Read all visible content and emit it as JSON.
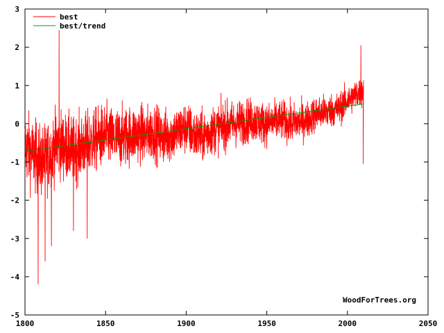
{
  "chart_data": {
    "type": "line",
    "xlim": [
      1800,
      2050
    ],
    "ylim": [
      -5,
      3
    ],
    "x_ticks": [
      1800,
      1850,
      1900,
      1950,
      2000,
      2050
    ],
    "y_ticks": [
      -5,
      -4,
      -3,
      -2,
      -1,
      0,
      1,
      2,
      3
    ],
    "x_tick_labels": [
      "1800",
      "1850",
      "1900",
      "1950",
      "2000",
      "2050"
    ],
    "y_tick_labels": [
      "-5",
      "-4",
      "-3",
      "-2",
      "-1",
      "0",
      "1",
      "2",
      "3"
    ],
    "grid": false,
    "legend_position": "top-left",
    "credit": "WoodForTrees.org",
    "series": [
      {
        "name": "best",
        "color": "#ff0000",
        "x": [
          1800,
          1805,
          1810,
          1815,
          1820,
          1825,
          1830,
          1835,
          1840,
          1845,
          1850,
          1855,
          1860,
          1865,
          1870,
          1875,
          1880,
          1885,
          1890,
          1895,
          1900,
          1905,
          1910,
          1915,
          1920,
          1925,
          1930,
          1935,
          1940,
          1945,
          1950,
          1955,
          1960,
          1965,
          1970,
          1975,
          1980,
          1985,
          1990,
          1995,
          2000,
          2005,
          2010
        ],
        "y": [
          -0.6,
          -0.8,
          -1.0,
          -0.8,
          -0.5,
          -0.6,
          -0.7,
          -0.6,
          -0.5,
          -0.4,
          -0.3,
          -0.4,
          -0.35,
          -0.3,
          -0.25,
          -0.3,
          -0.2,
          -0.35,
          -0.3,
          -0.2,
          -0.1,
          -0.3,
          -0.35,
          -0.2,
          -0.1,
          -0.05,
          0.0,
          0.05,
          0.1,
          0.05,
          0.0,
          0.05,
          0.1,
          0.0,
          0.05,
          0.1,
          0.25,
          0.3,
          0.35,
          0.4,
          0.6,
          0.75,
          0.85
        ],
        "max": 2.45,
        "min": -4.2
      },
      {
        "name": "best/trend",
        "color": "#00a000",
        "x": [
          1800,
          2010
        ],
        "y": [
          -0.72,
          0.52
        ]
      }
    ]
  }
}
